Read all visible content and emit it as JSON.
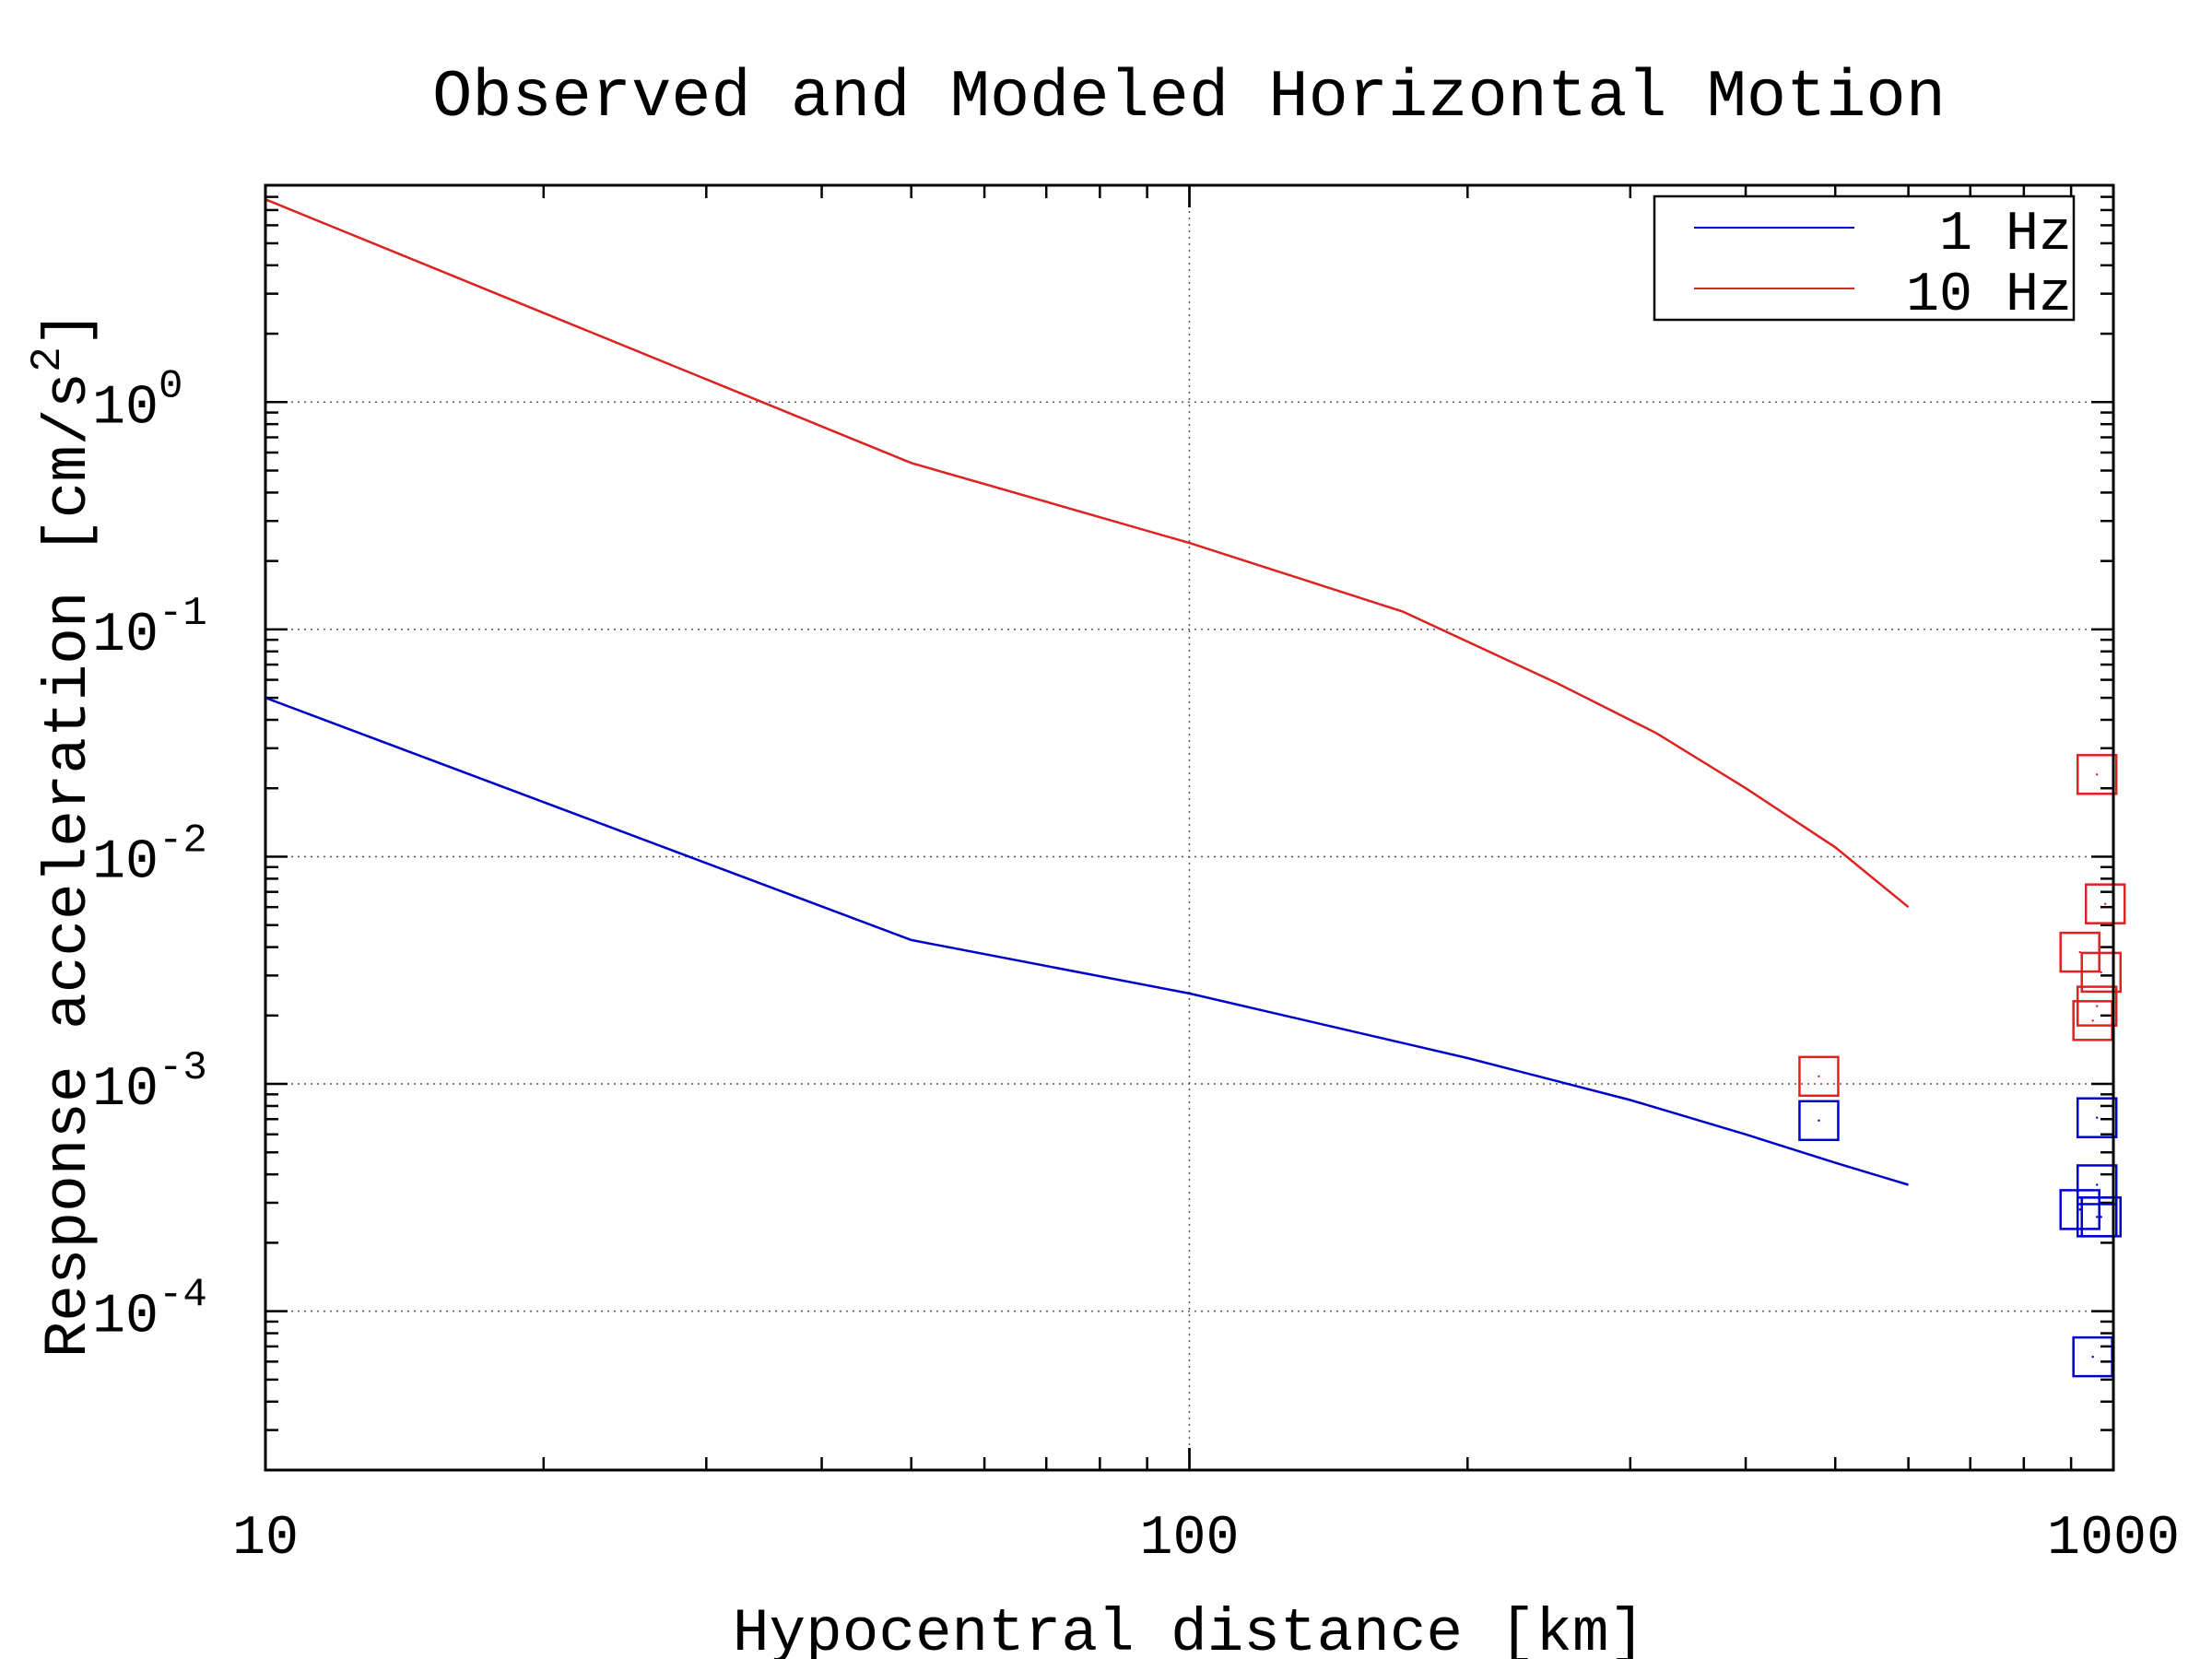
{
  "chart_data": {
    "type": "line",
    "title": "Observed and Modeled Horizontal Motion",
    "xlabel": "Hypocentral distance [km]",
    "ylabel": "Response acceleration [cm/s",
    "ylabel_sup": "2",
    "ylabel_close": "]",
    "x_scale": "log",
    "y_scale": "log",
    "xlim": [
      10,
      1000
    ],
    "ylim": [
      2e-05,
      9
    ],
    "x_ticks": [
      {
        "value": 10,
        "label": "10"
      },
      {
        "value": 100,
        "label": "100"
      },
      {
        "value": 1000,
        "label": "1000"
      }
    ],
    "y_ticks": [
      {
        "value": 1,
        "base": "10",
        "exp": "0"
      },
      {
        "value": 0.1,
        "base": "10",
        "exp": "-1"
      },
      {
        "value": 0.01,
        "base": "10",
        "exp": "-2"
      },
      {
        "value": 0.001,
        "base": "10",
        "exp": "-3"
      },
      {
        "value": 0.0001,
        "base": "10",
        "exp": "-4"
      }
    ],
    "grid": "dotted, major ticks",
    "legend_position": "top-right",
    "series": [
      {
        "name": "1 Hz",
        "color": "#0000cc",
        "kind": "line",
        "x": [
          10,
          50,
          100,
          200,
          300,
          400,
          500,
          600
        ],
        "y": [
          0.05,
          0.0043,
          0.0025,
          0.0013,
          0.00085,
          0.0006,
          0.00045,
          0.00036
        ]
      },
      {
        "name": "10 Hz",
        "color": "#dd2222",
        "kind": "line",
        "x": [
          10,
          50,
          100,
          170,
          250,
          320,
          400,
          500,
          600
        ],
        "y": [
          7.8,
          0.54,
          0.24,
          0.12,
          0.058,
          0.035,
          0.02,
          0.011,
          0.006
        ]
      }
    ],
    "observed": [
      {
        "color": "#dd2222",
        "kind": "square-marker",
        "x": [
          480,
          960,
          980,
          920,
          970,
          960,
          950
        ],
        "y": [
          0.00108,
          0.023,
          0.0062,
          0.0038,
          0.0031,
          0.0022,
          0.0019
        ]
      },
      {
        "color": "#0000cc",
        "kind": "square-marker",
        "x": [
          480,
          960,
          960,
          920,
          960,
          970,
          950
        ],
        "y": [
          0.00069,
          0.00071,
          0.00036,
          0.00028,
          0.00026,
          0.00026,
          6.3e-05
        ]
      }
    ]
  }
}
